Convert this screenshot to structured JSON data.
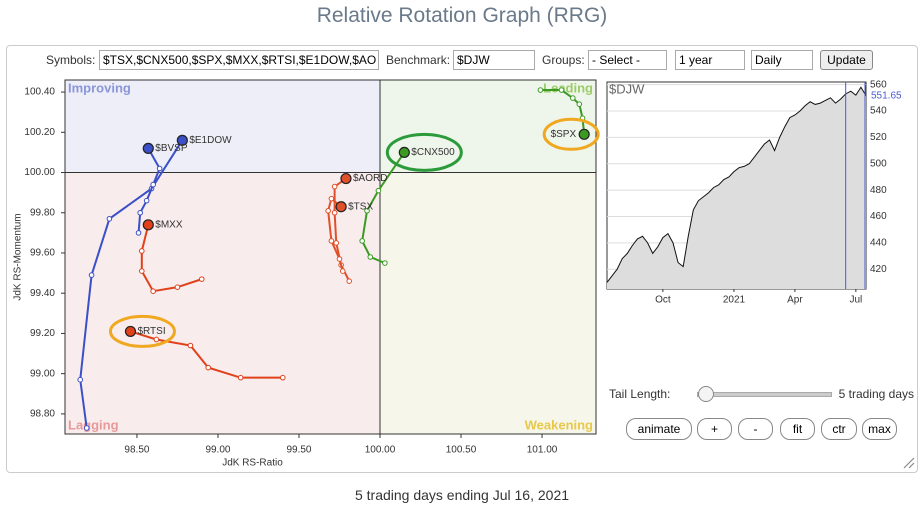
{
  "header": {
    "title": "Relative Rotation Graph (RRG)"
  },
  "controls": {
    "symbols_label": "Symbols:",
    "symbols_value": "$TSX,$CNX500,$SPX,$MXX,$RTSI,$E1DOW,$AO",
    "benchmark_label": "Benchmark:",
    "benchmark_value": "$DJW",
    "groups_label": "Groups:",
    "groups_value": "- Select -",
    "period": "1 year",
    "frequency": "Daily",
    "update": "Update"
  },
  "chart_data": [
    {
      "type": "scatter",
      "xlabel": "JdK RS-Ratio",
      "ylabel": "JdK RS-Momentum",
      "quadrants": [
        "Improving",
        "Leading",
        "Lagging",
        "Weakening"
      ],
      "xlim": [
        98.056,
        101.333
      ],
      "ylim": [
        98.7,
        100.46
      ],
      "xticks": [
        {
          "value": 98.5,
          "label": "98.50"
        },
        {
          "value": 99,
          "label": "99.00"
        },
        {
          "value": 99.5,
          "label": "99.50"
        },
        {
          "value": 100,
          "label": "100.00"
        },
        {
          "value": 100.5,
          "label": "100.50"
        },
        {
          "value": 101,
          "label": "101.00"
        }
      ],
      "yticks": [
        {
          "value": 98.8,
          "label": "98.80"
        },
        {
          "value": 99,
          "label": "99.00"
        },
        {
          "value": 99.2,
          "label": "99.20"
        },
        {
          "value": 99.4,
          "label": "99.40"
        },
        {
          "value": 99.6,
          "label": "99.60"
        },
        {
          "value": 99.8,
          "label": "99.80"
        },
        {
          "value": 100,
          "label": "100.00"
        },
        {
          "value": 100.2,
          "label": "100.20"
        },
        {
          "value": 100.4,
          "label": "100.40"
        }
      ],
      "series": [
        {
          "name": "$SPX",
          "color": "#3a9a22",
          "x": [
            100.99,
            101.12,
            101.19,
            101.23,
            101.25,
            101.26
          ],
          "values": [
            100.41,
            100.41,
            100.37,
            100.34,
            100.27,
            100.19
          ]
        },
        {
          "name": "$CNX500",
          "color": "#3a9a22",
          "x": [
            100.03,
            99.94,
            99.89,
            99.92,
            99.99,
            100.15
          ],
          "values": [
            99.55,
            99.58,
            99.66,
            99.81,
            99.91,
            100.1
          ]
        },
        {
          "name": "$AORD",
          "color": "#e0502a",
          "x": [
            99.81,
            99.76,
            99.73,
            99.72,
            99.72,
            99.79
          ],
          "values": [
            99.46,
            99.54,
            99.65,
            99.8,
            99.93,
            99.97
          ]
        },
        {
          "name": "$TSX",
          "color": "#e0502a",
          "x": [
            99.77,
            99.75,
            99.7,
            99.68,
            99.7,
            99.76
          ],
          "values": [
            99.51,
            99.57,
            99.66,
            99.81,
            99.87,
            99.83
          ]
        },
        {
          "name": "$MXX",
          "color": "#e0401a",
          "x": [
            98.9,
            98.75,
            98.6,
            98.53,
            98.53,
            98.57
          ],
          "values": [
            99.47,
            99.43,
            99.41,
            99.51,
            99.61,
            99.74
          ]
        },
        {
          "name": "$RTSI",
          "color": "#e0401a",
          "x": [
            99.4,
            99.14,
            98.94,
            98.83,
            98.62,
            98.46
          ],
          "values": [
            98.98,
            98.98,
            99.03,
            99.14,
            99.17,
            99.21
          ]
        },
        {
          "name": "$E1DOW",
          "color": "#3a4fc8",
          "x": [
            98.19,
            98.15,
            98.22,
            98.33,
            98.59,
            98.78
          ],
          "values": [
            98.73,
            98.97,
            99.49,
            99.77,
            99.92,
            100.16
          ]
        },
        {
          "name": "$BVSP",
          "color": "#3a4fc8",
          "x": [
            98.51,
            98.52,
            98.56,
            98.6,
            98.64,
            98.57
          ],
          "values": [
            99.7,
            99.8,
            99.86,
            99.94,
            100.02,
            100.12
          ]
        }
      ]
    },
    {
      "type": "area",
      "title": "$DJW",
      "color": "#dddddd",
      "categories": [
        null,
        null,
        null,
        null,
        null,
        null,
        null,
        null,
        null,
        null,
        null,
        "Oct",
        null,
        null,
        null,
        null,
        null,
        null,
        null,
        null,
        null,
        null,
        null,
        null,
        null,
        "2021",
        null,
        null,
        null,
        null,
        null,
        null,
        null,
        null,
        null,
        null,
        null,
        "Apr",
        null,
        null,
        null,
        null,
        null,
        null,
        null,
        null,
        null,
        null,
        null,
        "Jul",
        null,
        null
      ],
      "values": [
        410,
        415,
        420,
        428,
        432,
        438,
        443,
        445,
        440,
        432,
        437,
        444,
        447,
        440,
        425,
        422,
        445,
        465,
        472,
        475,
        478,
        482,
        484,
        488,
        490,
        494,
        497,
        498,
        500,
        505,
        510,
        515,
        518,
        510,
        520,
        528,
        535,
        537,
        540,
        544,
        547,
        545,
        546,
        548,
        550,
        546,
        549,
        553,
        555,
        552,
        558,
        551.65
      ],
      "ylim": [
        405,
        562
      ],
      "yticks": [
        420,
        440,
        460,
        480,
        500,
        520,
        540,
        560
      ]
    }
  ],
  "tail": {
    "label": "Tail Length:",
    "value_text": "5 trading days"
  },
  "buttons": [
    "animate",
    "+",
    "-",
    "fit",
    "ctr",
    "max"
  ],
  "footer": "5 trading days ending Jul 16, 2021"
}
